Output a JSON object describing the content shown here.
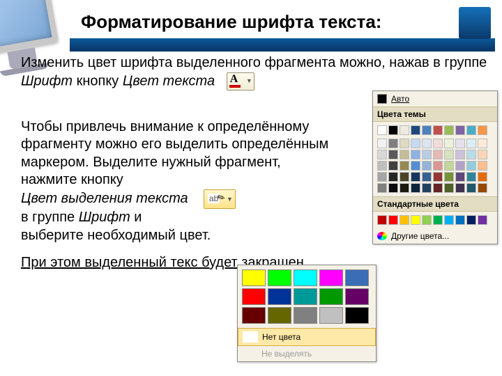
{
  "title": "Форматирование шрифта текста:",
  "para1_a": "Изменить цвет шрифта выделенного фрагмента можно, нажав в группе ",
  "para1_b": "Шрифт",
  "para1_c": " кнопку ",
  "para1_d": "Цвет текста",
  "para2_a": "Чтобы привлечь внимание к определённому фрагменту можно его выделить определённым маркером. Выделите нужный фрагмент, нажмите кнопку",
  "para2_b": "Цвет выделения текста",
  "para2_c": "в группе ",
  "para2_d": "Шрифт",
  "para2_e": " и",
  "para2_f": "выберите необходимый цвет.",
  "para3": "При этом выделенный текс будет закрашен.",
  "btnA": "A",
  "hl_ab": "ab",
  "picker": {
    "auto": "Авто",
    "auto_color": "#000000",
    "hdr1": "Цвета темы",
    "theme_row1": [
      "#ffffff",
      "#000000",
      "#eeece1",
      "#1f497d",
      "#4f81bd",
      "#c0504d",
      "#9bbb59",
      "#8064a2",
      "#4bacc6",
      "#f79646"
    ],
    "theme_tints": [
      [
        "#f2f2f2",
        "#7f7f7f",
        "#ddd9c3",
        "#c6d9f0",
        "#dbe5f1",
        "#f2dcdb",
        "#ebf1dd",
        "#e5e0ec",
        "#dbeef3",
        "#fdeada"
      ],
      [
        "#d8d8d8",
        "#595959",
        "#c4bd97",
        "#8db3e2",
        "#b8cce4",
        "#e5b9b7",
        "#d7e3bc",
        "#ccc1d9",
        "#b7dde8",
        "#fbd5b5"
      ],
      [
        "#bfbfbf",
        "#3f3f3f",
        "#938953",
        "#548dd4",
        "#95b3d7",
        "#d99694",
        "#c3d69b",
        "#b2a2c7",
        "#92cddc",
        "#fac08f"
      ],
      [
        "#a5a5a5",
        "#262626",
        "#494429",
        "#17365d",
        "#366092",
        "#953734",
        "#76923c",
        "#5f497a",
        "#31859b",
        "#e36c09"
      ],
      [
        "#7f7f7f",
        "#0c0c0c",
        "#1d1b10",
        "#0f243e",
        "#244061",
        "#632423",
        "#4f6128",
        "#3f3151",
        "#205867",
        "#974806"
      ]
    ],
    "hdr2": "Стандартные цвета",
    "std": [
      "#c00000",
      "#ff0000",
      "#ffc000",
      "#ffff00",
      "#92d050",
      "#00b050",
      "#00b0f0",
      "#0070c0",
      "#002060",
      "#7030a0"
    ],
    "more": "Другие цвета..."
  },
  "hl": {
    "colors": [
      [
        "#ffff00",
        "#00ff00",
        "#00ffff",
        "#ff00ff",
        "#3a6db5"
      ],
      [
        "#ff0000",
        "#003399",
        "#009999",
        "#009900",
        "#660066"
      ],
      [
        "#660000",
        "#666600",
        "#808080",
        "#c0c0c0",
        "#000000"
      ]
    ],
    "none_sw": "#ffffff",
    "none": "Нет цвета",
    "off": "Не выделять"
  }
}
